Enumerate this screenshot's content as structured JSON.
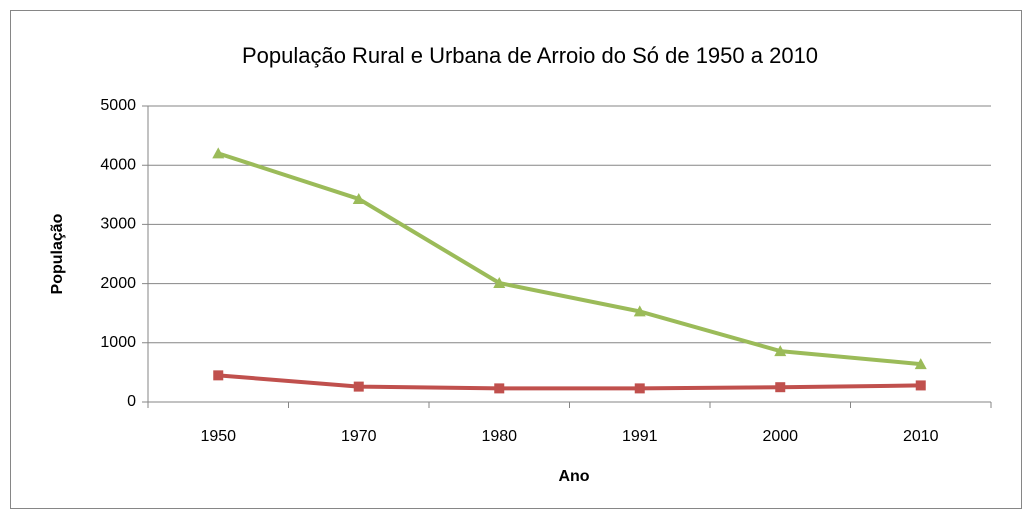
{
  "chart_data": {
    "type": "line",
    "title": "População Rural e Urbana de Arroio do Só de 1950 a 2010",
    "x_label": "Ano",
    "y_label": "População",
    "categories": [
      "1950",
      "1970",
      "1980",
      "1991",
      "2000",
      "2010"
    ],
    "series": [
      {
        "color": "#9bbb59",
        "marker": "triangle",
        "values": [
          4200,
          3430,
          2010,
          1530,
          860,
          640
        ]
      },
      {
        "color": "#c0504d",
        "marker": "square",
        "values": [
          450,
          260,
          230,
          230,
          250,
          280
        ]
      }
    ],
    "ylim": [
      0,
      5000
    ],
    "yticks": [
      0,
      1000,
      2000,
      3000,
      4000,
      5000
    ],
    "grid": true
  }
}
